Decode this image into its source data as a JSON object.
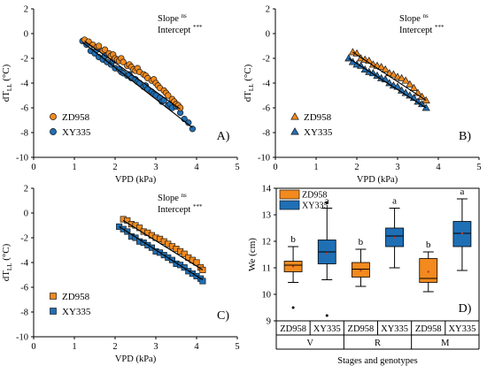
{
  "colors": {
    "zd958_fill": "#f28a1e",
    "xy335_fill": "#1f6fb5",
    "marker_edge": "#1a1a1a",
    "axis": "#000000",
    "fit_line": "#000000"
  },
  "chart_data": [
    {
      "panel": "A)",
      "type": "scatter",
      "marker": "circle",
      "xlabel": "VPD (kPa)",
      "ylabel": "dT",
      "ylabel_sub": "LL",
      "ylabel_unit": " (°C)",
      "xlim": [
        0,
        5
      ],
      "ylim": [
        -10,
        2
      ],
      "xticks": [
        0,
        1,
        2,
        3,
        4,
        5
      ],
      "yticks": [
        2,
        0,
        -2,
        -4,
        -6,
        -8,
        -10
      ],
      "slope_label": "Slope",
      "slope_sig": "ns",
      "intercept_label": "Intercept",
      "intercept_sig": "***",
      "legend_position": "lower-left",
      "series": [
        {
          "name": "ZD958",
          "color": "#f28a1e",
          "fit": {
            "x": [
              1.25,
              3.6
            ],
            "y": [
              -0.6,
              -6.1
            ]
          },
          "points": [
            [
              1.25,
              -0.5
            ],
            [
              1.35,
              -0.65
            ],
            [
              1.45,
              -0.9
            ],
            [
              1.55,
              -1.1
            ],
            [
              1.6,
              -1.0
            ],
            [
              1.7,
              -1.4
            ],
            [
              1.75,
              -1.3
            ],
            [
              1.85,
              -1.6
            ],
            [
              1.9,
              -1.8
            ],
            [
              1.95,
              -1.7
            ],
            [
              2.0,
              -2.0
            ],
            [
              2.05,
              -2.1
            ],
            [
              2.1,
              -2.2
            ],
            [
              2.15,
              -2.0
            ],
            [
              2.2,
              -2.3
            ],
            [
              2.3,
              -2.6
            ],
            [
              2.35,
              -2.5
            ],
            [
              2.4,
              -2.7
            ],
            [
              2.45,
              -2.9
            ],
            [
              2.5,
              -3.0
            ],
            [
              2.55,
              -2.8
            ],
            [
              2.6,
              -3.1
            ],
            [
              2.7,
              -3.3
            ],
            [
              2.75,
              -3.4
            ],
            [
              2.8,
              -3.6
            ],
            [
              2.9,
              -3.8
            ],
            [
              2.95,
              -3.7
            ],
            [
              3.0,
              -4.0
            ],
            [
              3.05,
              -4.2
            ],
            [
              3.1,
              -4.4
            ],
            [
              3.2,
              -4.6
            ],
            [
              3.25,
              -4.8
            ],
            [
              3.3,
              -5.0
            ],
            [
              3.4,
              -5.3
            ],
            [
              3.45,
              -5.5
            ],
            [
              3.5,
              -5.7
            ],
            [
              3.55,
              -5.8
            ],
            [
              3.6,
              -6.0
            ]
          ]
        },
        {
          "name": "XY335",
          "color": "#1f6fb5",
          "fit": {
            "x": [
              1.2,
              3.9
            ],
            "y": [
              -0.7,
              -7.6
            ]
          },
          "points": [
            [
              1.2,
              -0.6
            ],
            [
              1.3,
              -0.9
            ],
            [
              1.4,
              -1.4
            ],
            [
              1.5,
              -1.6
            ],
            [
              1.55,
              -1.3
            ],
            [
              1.6,
              -1.9
            ],
            [
              1.7,
              -2.1
            ],
            [
              1.75,
              -1.8
            ],
            [
              1.8,
              -2.3
            ],
            [
              1.9,
              -2.5
            ],
            [
              1.95,
              -2.2
            ],
            [
              2.0,
              -2.8
            ],
            [
              2.1,
              -2.9
            ],
            [
              2.15,
              -3.1
            ],
            [
              2.2,
              -3.2
            ],
            [
              2.3,
              -3.4
            ],
            [
              2.35,
              -3.3
            ],
            [
              2.4,
              -3.6
            ],
            [
              2.5,
              -3.7
            ],
            [
              2.55,
              -3.9
            ],
            [
              2.6,
              -4.0
            ],
            [
              2.7,
              -4.3
            ],
            [
              2.75,
              -4.2
            ],
            [
              2.8,
              -4.5
            ],
            [
              2.9,
              -4.7
            ],
            [
              2.95,
              -4.9
            ],
            [
              3.0,
              -5.0
            ],
            [
              3.1,
              -5.2
            ],
            [
              3.15,
              -5.5
            ],
            [
              3.2,
              -5.4
            ],
            [
              3.3,
              -5.8
            ],
            [
              3.35,
              -5.7
            ],
            [
              3.4,
              -6.0
            ],
            [
              3.5,
              -5.9
            ],
            [
              3.6,
              -6.4
            ],
            [
              3.7,
              -6.9
            ],
            [
              3.8,
              -7.2
            ],
            [
              3.9,
              -7.7
            ]
          ]
        }
      ]
    },
    {
      "panel": "B)",
      "type": "scatter",
      "marker": "triangle",
      "xlabel": "VPD (kPa)",
      "ylabel": "dT",
      "ylabel_sub": "LL",
      "ylabel_unit": " (°C)",
      "xlim": [
        0,
        5
      ],
      "ylim": [
        -10,
        2
      ],
      "xticks": [
        0,
        1,
        2,
        3,
        4,
        5
      ],
      "yticks": [
        2,
        0,
        -2,
        -4,
        -6,
        -8,
        -10
      ],
      "slope_label": "Slope",
      "slope_sig": "ns",
      "intercept_label": "Intercept",
      "intercept_sig": "***",
      "legend_position": "lower-left",
      "series": [
        {
          "name": "ZD958",
          "color": "#f28a1e",
          "fit": {
            "x": [
              1.9,
              3.7
            ],
            "y": [
              -1.5,
              -5.4
            ]
          },
          "points": [
            [
              1.9,
              -1.5
            ],
            [
              2.0,
              -1.6
            ],
            [
              2.1,
              -2.0
            ],
            [
              2.2,
              -2.1
            ],
            [
              2.3,
              -2.2
            ],
            [
              2.4,
              -2.5
            ],
            [
              2.5,
              -2.6
            ],
            [
              2.6,
              -2.7
            ],
            [
              2.7,
              -2.9
            ],
            [
              2.8,
              -3.2
            ],
            [
              2.9,
              -3.3
            ],
            [
              3.0,
              -3.5
            ],
            [
              3.1,
              -3.6
            ],
            [
              3.2,
              -3.8
            ],
            [
              3.3,
              -4.1
            ],
            [
              3.4,
              -4.4
            ],
            [
              3.5,
              -4.8
            ],
            [
              3.6,
              -5.1
            ],
            [
              3.7,
              -5.4
            ]
          ]
        },
        {
          "name": "XY335",
          "color": "#1f6fb5",
          "fit": {
            "x": [
              1.8,
              3.7
            ],
            "y": [
              -2.0,
              -6.0
            ]
          },
          "points": [
            [
              1.8,
              -2.0
            ],
            [
              1.9,
              -2.3
            ],
            [
              2.0,
              -2.5
            ],
            [
              2.1,
              -2.6
            ],
            [
              2.2,
              -2.9
            ],
            [
              2.3,
              -3.1
            ],
            [
              2.4,
              -3.2
            ],
            [
              2.5,
              -3.4
            ],
            [
              2.6,
              -3.6
            ],
            [
              2.7,
              -3.7
            ],
            [
              2.8,
              -4.0
            ],
            [
              2.9,
              -4.2
            ],
            [
              3.0,
              -4.3
            ],
            [
              3.1,
              -4.6
            ],
            [
              3.2,
              -4.8
            ],
            [
              3.3,
              -5.0
            ],
            [
              3.4,
              -5.2
            ],
            [
              3.5,
              -5.5
            ],
            [
              3.6,
              -5.7
            ],
            [
              3.7,
              -6.0
            ]
          ]
        }
      ]
    },
    {
      "panel": "C)",
      "type": "scatter",
      "marker": "square",
      "xlabel": "VPD (kPa)",
      "ylabel": "dT",
      "ylabel_sub": "LL",
      "ylabel_unit": " (°C)",
      "xlim": [
        0,
        5
      ],
      "ylim": [
        -10,
        2
      ],
      "xticks": [
        0,
        1,
        2,
        3,
        4,
        5
      ],
      "yticks": [
        2,
        0,
        -2,
        -4,
        -6,
        -8,
        -10
      ],
      "slope_label": "Slope",
      "slope_sig": "ns",
      "intercept_label": "Intercept",
      "intercept_sig": "***",
      "legend_position": "lower-left",
      "series": [
        {
          "name": "ZD958",
          "color": "#f28a1e",
          "fit": {
            "x": [
              2.2,
              4.15
            ],
            "y": [
              -0.6,
              -4.6
            ]
          },
          "points": [
            [
              2.2,
              -0.5
            ],
            [
              2.3,
              -0.6
            ],
            [
              2.4,
              -0.9
            ],
            [
              2.5,
              -1.0
            ],
            [
              2.6,
              -1.2
            ],
            [
              2.7,
              -1.5
            ],
            [
              2.8,
              -1.6
            ],
            [
              2.9,
              -1.8
            ],
            [
              3.0,
              -2.0
            ],
            [
              3.1,
              -2.1
            ],
            [
              3.2,
              -2.3
            ],
            [
              3.3,
              -2.5
            ],
            [
              3.4,
              -2.7
            ],
            [
              3.5,
              -2.9
            ],
            [
              3.6,
              -3.1
            ],
            [
              3.7,
              -3.3
            ],
            [
              3.8,
              -3.6
            ],
            [
              3.9,
              -3.8
            ],
            [
              4.0,
              -4.0
            ],
            [
              4.1,
              -4.4
            ],
            [
              4.15,
              -4.6
            ]
          ]
        },
        {
          "name": "XY335",
          "color": "#1f6fb5",
          "fit": {
            "x": [
              2.1,
              4.15
            ],
            "y": [
              -1.1,
              -5.4
            ]
          },
          "points": [
            [
              2.1,
              -1.1
            ],
            [
              2.2,
              -1.3
            ],
            [
              2.3,
              -1.5
            ],
            [
              2.4,
              -1.9
            ],
            [
              2.5,
              -2.0
            ],
            [
              2.6,
              -2.3
            ],
            [
              2.7,
              -2.4
            ],
            [
              2.8,
              -2.6
            ],
            [
              2.9,
              -2.8
            ],
            [
              3.0,
              -3.1
            ],
            [
              3.1,
              -3.2
            ],
            [
              3.2,
              -3.4
            ],
            [
              3.3,
              -3.6
            ],
            [
              3.4,
              -3.8
            ],
            [
              3.5,
              -4.1
            ],
            [
              3.6,
              -4.2
            ],
            [
              3.7,
              -4.4
            ],
            [
              3.8,
              -4.7
            ],
            [
              3.9,
              -4.9
            ],
            [
              4.0,
              -5.1
            ],
            [
              4.1,
              -5.3
            ],
            [
              4.15,
              -5.5
            ]
          ]
        }
      ]
    },
    {
      "panel": "D)",
      "type": "box",
      "ylabel": "We (cm)",
      "xlabel": "Stages and genotypes",
      "ylim": [
        9,
        14
      ],
      "yticks": [
        9,
        10,
        11,
        12,
        13,
        14
      ],
      "legend": [
        "ZD958",
        "XY335"
      ],
      "legend_position": "top-left",
      "groups": [
        {
          "stage": "V",
          "boxes": [
            {
              "genotype": "ZD958",
              "color": "#f28a1e",
              "min": 10.45,
              "q1": 10.85,
              "median": 11.1,
              "q3": 11.25,
              "max": 11.8,
              "mean": 11.05,
              "outliers": [
                9.5
              ],
              "letter": "b"
            },
            {
              "genotype": "XY335",
              "color": "#1f6fb5",
              "min": 10.55,
              "q1": 11.15,
              "median": 11.6,
              "q3": 12.05,
              "max": 13.25,
              "mean": 11.55,
              "outliers": [
                9.2,
                13.45
              ],
              "letter": "a"
            }
          ]
        },
        {
          "stage": "R",
          "boxes": [
            {
              "genotype": "ZD958",
              "color": "#f28a1e",
              "min": 10.3,
              "q1": 10.65,
              "median": 10.95,
              "q3": 11.2,
              "max": 11.7,
              "mean": 10.9,
              "outliers": [],
              "letter": "b"
            },
            {
              "genotype": "XY335",
              "color": "#1f6fb5",
              "min": 11.0,
              "q1": 11.8,
              "median": 12.2,
              "q3": 12.5,
              "max": 13.25,
              "mean": 12.15,
              "outliers": [],
              "letter": "a"
            }
          ]
        },
        {
          "stage": "M",
          "boxes": [
            {
              "genotype": "ZD958",
              "color": "#f28a1e",
              "min": 10.1,
              "q1": 10.45,
              "median": 10.6,
              "q3": 11.35,
              "max": 11.6,
              "mean": 10.85,
              "outliers": [],
              "letter": "b"
            },
            {
              "genotype": "XY335",
              "color": "#1f6fb5",
              "min": 10.9,
              "q1": 11.8,
              "median": 12.3,
              "q3": 12.75,
              "max": 13.6,
              "mean": 12.3,
              "outliers": [],
              "letter": "a"
            }
          ]
        }
      ]
    }
  ]
}
